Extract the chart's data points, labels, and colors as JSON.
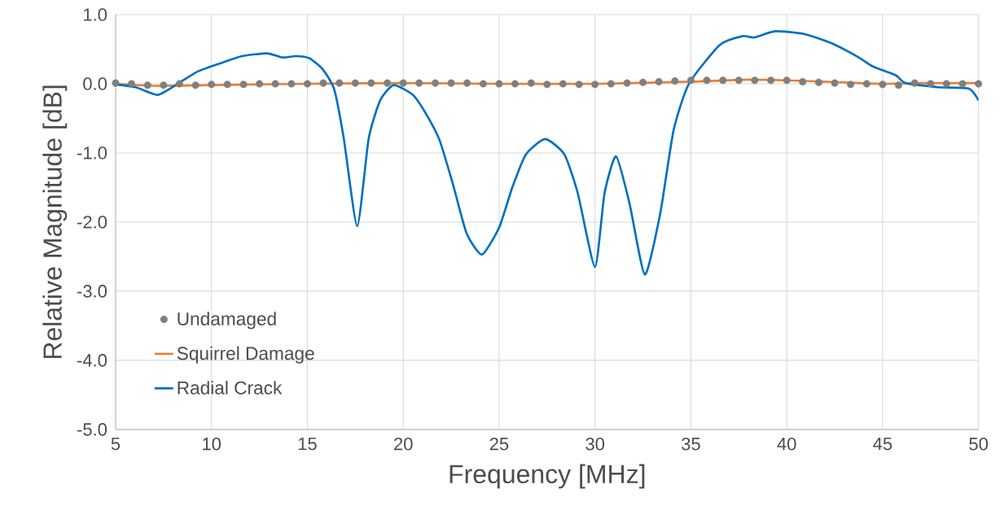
{
  "chart_data": {
    "type": "line",
    "xlabel": "Frequency [MHz]",
    "ylabel": "Relative Magnitude [dB]",
    "xlim": [
      5,
      50
    ],
    "xticks": [
      5,
      10,
      15,
      20,
      25,
      30,
      35,
      40,
      45,
      50
    ],
    "ylim": [
      -5,
      1
    ],
    "yticks": [
      {
        "value": -5,
        "label": "-5.0"
      },
      {
        "value": -4,
        "label": "-4.0"
      },
      {
        "value": -3,
        "label": "-3.0"
      },
      {
        "value": -2,
        "label": "-2.0"
      },
      {
        "value": -1,
        "label": "-1.0"
      },
      {
        "value": 0,
        "label": "0.0"
      },
      {
        "value": 1,
        "label": "1.0"
      }
    ],
    "grid": true,
    "legend": "bottom left",
    "series": [
      {
        "name": "Undamaged",
        "type": "scatter",
        "marker": "circle",
        "color": "#7f7f7f",
        "x": [
          5.0,
          5.83,
          6.67,
          7.5,
          8.33,
          9.17,
          10.0,
          10.83,
          11.67,
          12.5,
          13.33,
          14.17,
          15.0,
          15.83,
          16.67,
          17.5,
          18.33,
          19.17,
          20.0,
          20.83,
          21.67,
          22.5,
          23.33,
          24.17,
          25.0,
          25.83,
          26.67,
          27.5,
          28.33,
          29.17,
          30.0,
          30.83,
          31.67,
          32.5,
          33.33,
          34.17,
          35.0,
          35.83,
          36.67,
          37.5,
          38.33,
          39.17,
          40.0,
          40.83,
          41.67,
          42.5,
          43.33,
          44.17,
          45.0,
          45.83,
          46.67,
          47.5,
          48.33,
          49.17,
          50.0
        ],
        "values": [
          0.01,
          0.0,
          -0.02,
          -0.02,
          0.0,
          -0.02,
          -0.01,
          -0.01,
          -0.01,
          0.0,
          0.0,
          0.0,
          0.0,
          0.01,
          0.01,
          0.01,
          0.01,
          0.01,
          0.01,
          0.01,
          0.01,
          0.01,
          0.01,
          0.0,
          0.0,
          0.0,
          0.01,
          -0.01,
          0.0,
          -0.01,
          -0.01,
          0.0,
          0.01,
          0.02,
          0.03,
          0.04,
          0.05,
          0.05,
          0.05,
          0.05,
          0.05,
          0.05,
          0.05,
          0.03,
          0.02,
          0.01,
          -0.01,
          0.0,
          -0.01,
          -0.02,
          0.01,
          0.0,
          0.0,
          0.0,
          0.0
        ]
      },
      {
        "name": "Squirrel Damage",
        "marker": "none",
        "color": "#ed7d31",
        "x": [
          5,
          7,
          10,
          15,
          20,
          25,
          30,
          35,
          38,
          40,
          43,
          45,
          47,
          50
        ],
        "values": [
          0.0,
          -0.03,
          -0.02,
          0.0,
          0.01,
          0.0,
          0.0,
          0.03,
          0.06,
          0.05,
          0.02,
          0.0,
          0.01,
          0.01
        ]
      },
      {
        "name": "Radial Crack",
        "marker": "none",
        "color": "#0070c0",
        "x": [
          5,
          6.06,
          7.2,
          8.3,
          9.3,
          10.4,
          11.6,
          12.9,
          13.7,
          14.4,
          15.1,
          15.8,
          16.4,
          16.9,
          17.6,
          18.2,
          18.8,
          19.5,
          20.5,
          21.2,
          21.9,
          22.6,
          23.3,
          24.1,
          25.0,
          25.7,
          26.4,
          27.4,
          28.4,
          29.1,
          30.0,
          30.5,
          31.1,
          31.8,
          32.6,
          33.4,
          34.1,
          34.9,
          36.5,
          37.7,
          38.3,
          39.4,
          40.9,
          42.3,
          43.7,
          44.5,
          45.7,
          46.2,
          47.9,
          49.5,
          50
        ],
        "values": [
          -0.01,
          -0.05,
          -0.16,
          0.01,
          0.18,
          0.29,
          0.4,
          0.44,
          0.38,
          0.4,
          0.37,
          0.21,
          -0.08,
          -0.79,
          -2.06,
          -0.79,
          -0.24,
          -0.02,
          -0.16,
          -0.44,
          -0.82,
          -1.46,
          -2.16,
          -2.47,
          -2.08,
          -1.49,
          -1.02,
          -0.8,
          -1.02,
          -1.58,
          -2.65,
          -1.58,
          -1.05,
          -1.73,
          -2.76,
          -1.88,
          -0.67,
          0.0,
          0.56,
          0.69,
          0.67,
          0.76,
          0.72,
          0.59,
          0.39,
          0.25,
          0.12,
          0.01,
          -0.05,
          -0.07,
          -0.24
        ]
      }
    ]
  }
}
